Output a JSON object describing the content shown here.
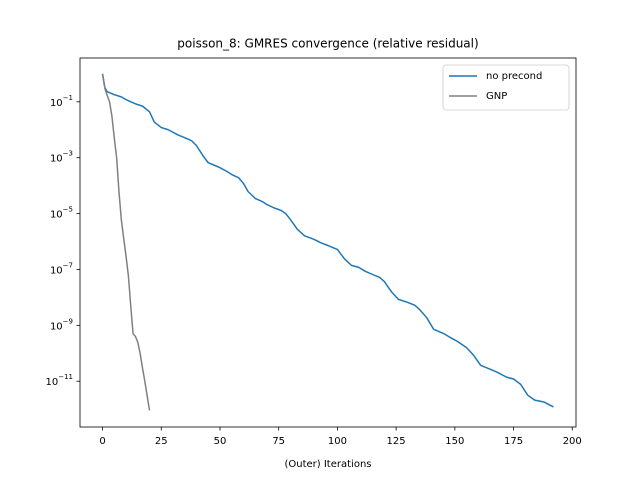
{
  "chart_data": {
    "type": "line",
    "title": "poisson_8: GMRES convergence (relative residual)",
    "x_label": "(Outer) Iterations",
    "log_y": true,
    "legend": "upper right",
    "xlim": [
      -9.6,
      201.6
    ],
    "xticks": [
      0,
      25,
      50,
      75,
      100,
      125,
      150,
      175,
      200
    ],
    "ylim": [
      2.3e-13,
      3.7
    ],
    "yticks": [
      {
        "value": 1e-11,
        "label": "10",
        "exponent": "−11"
      },
      {
        "value": 1e-09,
        "label": "10",
        "exponent": "−9"
      },
      {
        "value": 1e-07,
        "label": "10",
        "exponent": "−7"
      },
      {
        "value": 1e-05,
        "label": "10",
        "exponent": "−5"
      },
      {
        "value": 0.001,
        "label": "10",
        "exponent": "−3"
      },
      {
        "value": 0.1,
        "label": "10",
        "exponent": "−1"
      }
    ],
    "series": [
      {
        "name": "no precond",
        "color": "#1f77b4",
        "x": [
          0,
          1,
          2,
          5,
          8,
          10,
          14,
          17,
          20,
          22,
          25,
          28,
          32,
          36,
          38,
          40,
          43,
          45,
          48,
          50,
          53,
          55,
          58,
          60,
          62,
          65,
          68,
          70,
          73,
          76,
          78,
          80,
          83,
          86,
          90,
          93,
          96,
          100,
          103,
          106,
          109,
          112,
          115,
          118,
          120,
          123,
          126,
          130,
          133,
          135,
          138,
          141,
          145,
          148,
          151,
          155,
          158,
          161,
          165,
          168,
          172,
          175,
          178,
          181,
          184,
          188,
          192
        ],
        "values": [
          1,
          0.32,
          0.23,
          0.18,
          0.15,
          0.12,
          0.085,
          0.07,
          0.044,
          0.019,
          0.012,
          0.01,
          0.0066,
          0.0048,
          0.004,
          0.0027,
          0.0011,
          0.00066,
          0.00052,
          0.00044,
          0.00032,
          0.00025,
          0.00019,
          0.00012,
          6.1e-05,
          3.5e-05,
          2.7e-05,
          2.1e-05,
          1.6e-05,
          1.3e-05,
          1e-05,
          6.1e-06,
          2.7e-06,
          1.6e-06,
          1.2e-06,
          9e-07,
          7.2e-07,
          5.2e-07,
          2.4e-07,
          1.4e-07,
          1.2e-07,
          8.5e-08,
          6.6e-08,
          5.2e-08,
          3.7e-08,
          1.6e-08,
          8.5e-09,
          6.6e-09,
          5.2e-09,
          3.7e-09,
          1.9e-09,
          7.2e-10,
          5.2e-10,
          3.7e-10,
          2.7e-10,
          1.6e-10,
          8.5e-11,
          3.7e-11,
          2.7e-11,
          2.1e-11,
          1.4e-11,
          1.2e-11,
          7.8e-12,
          3.2e-12,
          2.1e-12,
          1.8e-12,
          1.2e-12
        ]
      },
      {
        "name": "GNP",
        "color": "#808080",
        "x": [
          0,
          1,
          2,
          3,
          4,
          5,
          6,
          7,
          8,
          9,
          10,
          11,
          12,
          13,
          14,
          15,
          16,
          17,
          18,
          19,
          20
        ],
        "values": [
          1,
          0.3,
          0.17,
          0.1,
          0.03,
          0.005,
          0.001,
          6e-05,
          6e-06,
          1.3e-06,
          3e-07,
          6e-08,
          5e-09,
          5e-10,
          4e-10,
          2.5e-10,
          1e-10,
          3e-11,
          1e-11,
          3e-12,
          9e-13
        ]
      }
    ]
  }
}
